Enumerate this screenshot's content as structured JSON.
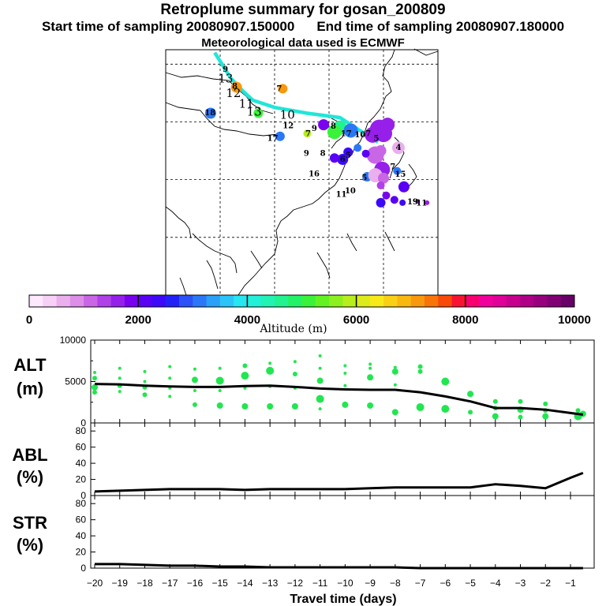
{
  "header": {
    "title": "Retroplume summary for gosan_200809",
    "start_label": "Start time of sampling 20080907.150000",
    "end_label": "End time of sampling 20080907.180000",
    "met_label": "Meteorological data used is ECMWF"
  },
  "colorbar": {
    "label": "Altitude (m)",
    "ticks": [
      "0",
      "2000",
      "4000",
      "6000",
      "8000",
      "10000"
    ],
    "range": [
      0,
      10000
    ],
    "colors": [
      "#fde8fd",
      "#f7d0f7",
      "#eab0ee",
      "#dd8ee8",
      "#c966e6",
      "#b040e8",
      "#9620ea",
      "#7a00f0",
      "#5a00f4",
      "#3c0af8",
      "#2222f8",
      "#2a52f8",
      "#2a78f8",
      "#2aa0f8",
      "#2ac4f8",
      "#26e6f2",
      "#22f0d8",
      "#22f2b4",
      "#22f290",
      "#22f266",
      "#3af23a",
      "#62f222",
      "#8cf01e",
      "#b8ee1c",
      "#dcec1a",
      "#f8ea18",
      "#f8d014",
      "#f8b810",
      "#f8980c",
      "#f87408",
      "#f84a08",
      "#f81430",
      "#f80070",
      "#f0009c",
      "#e0009a",
      "#c8008e",
      "#b00088",
      "#98007e",
      "#800074",
      "#680068"
    ]
  },
  "map": {
    "labels": [
      {
        "t": "9",
        "lon": 81.9,
        "lat": 58.4,
        "alt": 5600
      },
      {
        "t": "13",
        "lon": 82.0,
        "lat": 54.8,
        "alt": 5600
      },
      {
        "t": "8",
        "lon": 85.4,
        "lat": 52.5,
        "alt": 6900
      },
      {
        "t": "12",
        "lon": 84.9,
        "lat": 49.7,
        "alt": 4800
      },
      {
        "t": "7",
        "lon": 101.7,
        "lat": 51.8,
        "alt": 7200
      },
      {
        "t": "11",
        "lon": 89.6,
        "lat": 46.0,
        "alt": 4900
      },
      {
        "t": "13",
        "lon": 92.5,
        "lat": 43.3,
        "alt": 5300
      },
      {
        "t": "18",
        "lon": 76.3,
        "lat": 43.4,
        "alt": 3200
      },
      {
        "t": "10",
        "lon": 104.7,
        "lat": 42.2,
        "alt": 5100
      },
      {
        "t": "12",
        "lon": 105.0,
        "lat": 38.9,
        "alt": 5000
      },
      {
        "t": "9",
        "lon": 114.6,
        "lat": 38.0,
        "alt": 4900
      },
      {
        "t": "17",
        "lon": 99.3,
        "lat": 34.5,
        "alt": 3400
      },
      {
        "t": "7",
        "lon": 112.3,
        "lat": 36.1,
        "alt": 6000
      },
      {
        "t": "8",
        "lon": 121.6,
        "lat": 38.8,
        "alt": 1600
      },
      {
        "t": "17",
        "lon": 126.3,
        "lat": 36.1,
        "alt": 2300
      },
      {
        "t": "10",
        "lon": 131.4,
        "lat": 35.8,
        "alt": 3100
      },
      {
        "t": "7",
        "lon": 134.4,
        "lat": 36.1,
        "alt": 1900
      },
      {
        "t": "5",
        "lon": 137.4,
        "lat": 34.5,
        "alt": 1600
      },
      {
        "t": "4",
        "lon": 145.5,
        "lat": 31.4,
        "alt": 800
      },
      {
        "t": "9",
        "lon": 111.7,
        "lat": 29.4,
        "alt": 4500
      },
      {
        "t": "8",
        "lon": 117.7,
        "lat": 29.3,
        "alt": 4800
      },
      {
        "t": "6",
        "lon": 125.0,
        "lat": 27.3,
        "alt": 2900
      },
      {
        "t": "5",
        "lon": 127.1,
        "lat": 28.7,
        "alt": 2500
      },
      {
        "t": "7",
        "lon": 143.4,
        "lat": 24.7,
        "alt": 3400
      },
      {
        "t": "16",
        "lon": 114.5,
        "lat": 22.2,
        "alt": 2900
      },
      {
        "t": "15",
        "lon": 146.2,
        "lat": 22.1,
        "alt": 3500
      },
      {
        "t": "5",
        "lon": 133.0,
        "lat": 20.9,
        "alt": 3100
      },
      {
        "t": "10",
        "lon": 127.8,
        "lat": 16.3,
        "alt": 3400
      },
      {
        "t": "11",
        "lon": 124.5,
        "lat": 15.1,
        "alt": 3300
      },
      {
        "t": "19",
        "lon": 150.7,
        "lat": 12.5,
        "alt": 1700
      },
      {
        "t": "11",
        "lon": 154.0,
        "lat": 12.1,
        "alt": 1900
      }
    ]
  },
  "chart_data": [
    {
      "type": "map",
      "title": "Retroplume summary for gosan_200809",
      "region": {
        "lon_range": [
          60,
          160
        ],
        "lat_range": [
          -20,
          65
        ],
        "gridlines_lon": [
          80,
          100,
          120,
          140
        ],
        "gridlines_lat": [
          0,
          20,
          40,
          60
        ]
      },
      "trajectory": {
        "color": "#22e6d8",
        "points": [
          [
            78,
            64
          ],
          [
            84,
            55
          ],
          [
            88,
            51
          ],
          [
            92,
            47.5
          ],
          [
            100,
            45
          ],
          [
            112,
            43
          ],
          [
            124,
            41.5
          ],
          [
            133,
            36
          ],
          [
            138,
            33
          ]
        ]
      },
      "clusters": [
        {
          "lon": 86,
          "lat": 52,
          "alt": 7200,
          "r": 7
        },
        {
          "lon": 103,
          "lat": 51.5,
          "alt": 7200,
          "r": 6
        },
        {
          "lon": 94,
          "lat": 43,
          "alt": 5000,
          "r": 6
        },
        {
          "lon": 76.5,
          "lat": 43,
          "alt": 3200,
          "r": 7
        },
        {
          "lon": 118,
          "lat": 39,
          "alt": 1800,
          "r": 7
        },
        {
          "lon": 124,
          "lat": 38,
          "alt": 4600,
          "r": 9
        },
        {
          "lon": 128,
          "lat": 37,
          "alt": 3200,
          "r": 9
        },
        {
          "lon": 102,
          "lat": 35,
          "alt": 3200,
          "r": 6
        },
        {
          "lon": 112,
          "lat": 36,
          "alt": 5800,
          "r": 5
        },
        {
          "lon": 122,
          "lat": 36.5,
          "alt": 5200,
          "r": 9
        },
        {
          "lon": 136,
          "lat": 35.5,
          "alt": 1700,
          "r": 10
        },
        {
          "lon": 138.5,
          "lat": 37.5,
          "alt": 1700,
          "r": 12
        },
        {
          "lon": 141.5,
          "lat": 39,
          "alt": 1600,
          "r": 9
        },
        {
          "lon": 140,
          "lat": 36,
          "alt": 1700,
          "r": 11
        },
        {
          "lon": 130.5,
          "lat": 31,
          "alt": 3000,
          "r": 5
        },
        {
          "lon": 145.5,
          "lat": 31,
          "alt": 600,
          "r": 8
        },
        {
          "lon": 127,
          "lat": 29.5,
          "alt": 2400,
          "r": 6
        },
        {
          "lon": 137,
          "lat": 28.5,
          "alt": 1000,
          "r": 11
        },
        {
          "lon": 139,
          "lat": 30,
          "alt": 1200,
          "r": 7
        },
        {
          "lon": 133.5,
          "lat": 29,
          "alt": 2000,
          "r": 5
        },
        {
          "lon": 125,
          "lat": 27,
          "alt": 2400,
          "r": 7
        },
        {
          "lon": 122,
          "lat": 27.5,
          "alt": 2200,
          "r": 6
        },
        {
          "lon": 139.5,
          "lat": 23.5,
          "alt": 1600,
          "r": 10
        },
        {
          "lon": 145,
          "lat": 23,
          "alt": 3200,
          "r": 5
        },
        {
          "lon": 134,
          "lat": 21,
          "alt": 3000,
          "r": 6
        },
        {
          "lon": 137,
          "lat": 21.5,
          "alt": 500,
          "r": 9
        },
        {
          "lon": 140,
          "lat": 20.5,
          "alt": 1000,
          "r": 7
        },
        {
          "lon": 147.5,
          "lat": 17.5,
          "alt": 2000,
          "r": 7
        },
        {
          "lon": 139,
          "lat": 18,
          "alt": 1400,
          "r": 5
        },
        {
          "lon": 141,
          "lat": 14.5,
          "alt": 1800,
          "r": 5
        },
        {
          "lon": 139,
          "lat": 12,
          "alt": 2300,
          "r": 6
        },
        {
          "lon": 144,
          "lat": 13,
          "alt": 2100,
          "r": 5
        },
        {
          "lon": 147,
          "lat": 12,
          "alt": 2400,
          "r": 4
        },
        {
          "lon": 152.5,
          "lat": 12.5,
          "alt": 1500,
          "r": 3
        },
        {
          "lon": 156,
          "lat": 12,
          "alt": 1500,
          "r": 3
        }
      ]
    },
    {
      "type": "line",
      "title": "ALT",
      "ylabel": "ALT (m)",
      "xlabel": "Travel time (days)",
      "xlim": [
        -20,
        -0.5
      ],
      "ylim": [
        0,
        10000
      ],
      "x": [
        -20,
        -19,
        -18,
        -17,
        -16,
        -15,
        -14,
        -13,
        -12,
        -11,
        -10,
        -9,
        -8,
        -7,
        -6,
        -5,
        -4,
        -3,
        -2,
        -1,
        -0.5
      ],
      "series": [
        {
          "name": "median altitude",
          "values": [
            4700,
            4650,
            4500,
            4400,
            4350,
            4350,
            4450,
            4500,
            4350,
            4150,
            4050,
            4000,
            4000,
            3700,
            3200,
            2600,
            1800,
            1800,
            1600,
            1200,
            1000
          ]
        }
      ],
      "scatter": {
        "name": "altitude percentiles",
        "color": "#22e650",
        "points": [
          {
            "x": -20,
            "y": 6100,
            "r": 2
          },
          {
            "x": -20,
            "y": 5400,
            "r": 3
          },
          {
            "x": -20,
            "y": 4300,
            "r": 4
          },
          {
            "x": -20,
            "y": 3700,
            "r": 3
          },
          {
            "x": -19,
            "y": 6600,
            "r": 2
          },
          {
            "x": -19,
            "y": 5400,
            "r": 2
          },
          {
            "x": -19,
            "y": 4500,
            "r": 3
          },
          {
            "x": -19,
            "y": 3800,
            "r": 2
          },
          {
            "x": -18,
            "y": 6200,
            "r": 2
          },
          {
            "x": -18,
            "y": 5000,
            "r": 2
          },
          {
            "x": -18,
            "y": 4300,
            "r": 3
          },
          {
            "x": -18,
            "y": 3400,
            "r": 3
          },
          {
            "x": -17,
            "y": 6800,
            "r": 2
          },
          {
            "x": -17,
            "y": 5400,
            "r": 2
          },
          {
            "x": -17,
            "y": 4200,
            "r": 2
          },
          {
            "x": -17,
            "y": 3200,
            "r": 2
          },
          {
            "x": -16,
            "y": 6500,
            "r": 2
          },
          {
            "x": -16,
            "y": 5200,
            "r": 4
          },
          {
            "x": -16,
            "y": 3900,
            "r": 2
          },
          {
            "x": -16,
            "y": 2200,
            "r": 3
          },
          {
            "x": -15,
            "y": 6600,
            "r": 2
          },
          {
            "x": -15,
            "y": 5100,
            "r": 5
          },
          {
            "x": -15,
            "y": 3900,
            "r": 2
          },
          {
            "x": -15,
            "y": 2100,
            "r": 4
          },
          {
            "x": -14,
            "y": 6900,
            "r": 3
          },
          {
            "x": -14,
            "y": 5700,
            "r": 5
          },
          {
            "x": -14,
            "y": 4200,
            "r": 2
          },
          {
            "x": -14,
            "y": 2000,
            "r": 4
          },
          {
            "x": -13,
            "y": 7200,
            "r": 2
          },
          {
            "x": -13,
            "y": 6300,
            "r": 5
          },
          {
            "x": -13,
            "y": 4400,
            "r": 2
          },
          {
            "x": -13,
            "y": 2000,
            "r": 4
          },
          {
            "x": -12,
            "y": 7400,
            "r": 2
          },
          {
            "x": -12,
            "y": 5900,
            "r": 3
          },
          {
            "x": -12,
            "y": 4200,
            "r": 2
          },
          {
            "x": -12,
            "y": 2000,
            "r": 4
          },
          {
            "x": -11,
            "y": 8100,
            "r": 2
          },
          {
            "x": -11,
            "y": 6600,
            "r": 2
          },
          {
            "x": -11,
            "y": 5100,
            "r": 4
          },
          {
            "x": -11,
            "y": 2900,
            "r": 5
          },
          {
            "x": -11,
            "y": 1700,
            "r": 2
          },
          {
            "x": -10,
            "y": 6900,
            "r": 2
          },
          {
            "x": -10,
            "y": 6000,
            "r": 2
          },
          {
            "x": -10,
            "y": 4500,
            "r": 2
          },
          {
            "x": -10,
            "y": 2200,
            "r": 4
          },
          {
            "x": -9,
            "y": 7100,
            "r": 2
          },
          {
            "x": -9,
            "y": 6600,
            "r": 2
          },
          {
            "x": -9,
            "y": 5500,
            "r": 4
          },
          {
            "x": -9,
            "y": 2100,
            "r": 4
          },
          {
            "x": -8,
            "y": 6700,
            "r": 2
          },
          {
            "x": -8,
            "y": 6200,
            "r": 4
          },
          {
            "x": -8,
            "y": 4600,
            "r": 2
          },
          {
            "x": -8,
            "y": 1300,
            "r": 4
          },
          {
            "x": -7,
            "y": 6800,
            "r": 3
          },
          {
            "x": -7,
            "y": 6200,
            "r": 3
          },
          {
            "x": -7,
            "y": 1900,
            "r": 5
          },
          {
            "x": -6,
            "y": 5000,
            "r": 5
          },
          {
            "x": -6,
            "y": 1700,
            "r": 5
          },
          {
            "x": -5,
            "y": 3500,
            "r": 4
          },
          {
            "x": -5,
            "y": 1300,
            "r": 3
          },
          {
            "x": -4,
            "y": 2600,
            "r": 3
          },
          {
            "x": -4,
            "y": 1800,
            "r": 3
          },
          {
            "x": -4,
            "y": 800,
            "r": 4
          },
          {
            "x": -3,
            "y": 2600,
            "r": 3
          },
          {
            "x": -3,
            "y": 1600,
            "r": 4
          },
          {
            "x": -3,
            "y": 700,
            "r": 3
          },
          {
            "x": -2,
            "y": 2300,
            "r": 3
          },
          {
            "x": -2,
            "y": 1500,
            "r": 3
          },
          {
            "x": -2,
            "y": 800,
            "r": 4
          },
          {
            "x": -0.7,
            "y": 1500,
            "r": 3
          },
          {
            "x": -0.7,
            "y": 800,
            "r": 5
          },
          {
            "x": -0.5,
            "y": 1100,
            "r": 4
          }
        ]
      },
      "yticks": [
        "0",
        "5000",
        "10000"
      ],
      "side_label": [
        "ALT",
        "(m)"
      ]
    },
    {
      "type": "line",
      "title": "ABL",
      "ylabel": "ABL (%)",
      "xlim": [
        -20,
        -0.5
      ],
      "ylim": [
        0,
        90
      ],
      "x": [
        -20,
        -19,
        -18,
        -17,
        -16,
        -15,
        -14,
        -13,
        -12,
        -11,
        -10,
        -9,
        -8,
        -7,
        -6,
        -5,
        -4,
        -3,
        -2,
        -1,
        -0.5
      ],
      "series": [
        {
          "name": "ABL fraction",
          "values": [
            5,
            6,
            7,
            8,
            8,
            8,
            7,
            8,
            8,
            8,
            8,
            9,
            10,
            10,
            10,
            10,
            14,
            12,
            9,
            22,
            28
          ]
        }
      ],
      "yticks": [
        "0",
        "20",
        "40",
        "60",
        "80"
      ],
      "side_label": [
        "ABL",
        "(%)"
      ]
    },
    {
      "type": "line",
      "title": "STR",
      "ylabel": "STR (%)",
      "xlim": [
        -20,
        -0.5
      ],
      "ylim": [
        0,
        90
      ],
      "x": [
        -20,
        -19,
        -18,
        -17,
        -16,
        -15,
        -14,
        -13,
        -12,
        -11,
        -10,
        -9,
        -8,
        -7,
        -6,
        -5,
        -4,
        -3,
        -2,
        -1,
        -0.5
      ],
      "series": [
        {
          "name": "stratospheric fraction",
          "values": [
            5,
            5,
            4,
            3,
            3,
            2,
            2,
            1,
            1,
            1,
            1,
            1,
            1,
            0,
            0,
            0,
            0,
            0,
            0,
            0,
            0
          ]
        }
      ],
      "yticks": [
        "0",
        "20",
        "40",
        "60",
        "80"
      ],
      "side_label": [
        "STR",
        "(%)"
      ],
      "xticks": [
        "-20",
        "-19",
        "-18",
        "-17",
        "-16",
        "-15",
        "-14",
        "-13",
        "-12",
        "-11",
        "-10",
        "-9",
        "-8",
        "-7",
        "-6",
        "-5",
        "-4",
        "-3",
        "-2",
        "-1"
      ],
      "xlabel": "Travel time (days)"
    }
  ]
}
